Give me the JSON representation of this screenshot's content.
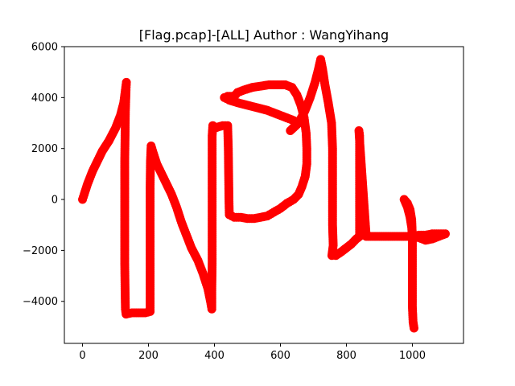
{
  "chart_data": {
    "type": "scatter",
    "title": "[Flag.pcap]-[ALL] Author : WangYihang",
    "xlabel": "",
    "ylabel": "",
    "xlim": [
      -55,
      1155
    ],
    "ylim": [
      -5650,
      6000
    ],
    "xticks": [
      0,
      200,
      400,
      600,
      800,
      1000
    ],
    "yticks": [
      -4000,
      -2000,
      0,
      2000,
      4000,
      6000
    ],
    "xtick_labels": [
      "0",
      "200",
      "400",
      "600",
      "800",
      "1000"
    ],
    "ytick_labels": [
      "−4000",
      "−2000",
      "0",
      "2000",
      "4000",
      "6000"
    ],
    "grid": false,
    "marker_color": "#ff0000",
    "series": [
      {
        "points": [
          [
            0,
            0
          ],
          [
            5,
            200
          ],
          [
            15,
            600
          ],
          [
            30,
            1100
          ],
          [
            45,
            1500
          ],
          [
            60,
            1900
          ],
          [
            80,
            2300
          ],
          [
            100,
            2800
          ],
          [
            115,
            3300
          ],
          [
            125,
            3800
          ],
          [
            130,
            4300
          ],
          [
            133,
            4600
          ],
          [
            132,
            4300
          ],
          [
            130,
            3500
          ],
          [
            129,
            2500
          ],
          [
            128,
            1500
          ],
          [
            128,
            500
          ],
          [
            128,
            -500
          ],
          [
            128,
            -1500
          ],
          [
            128,
            -2500
          ],
          [
            129,
            -3500
          ],
          [
            130,
            -4300
          ],
          [
            132,
            -4500
          ],
          [
            150,
            -4450
          ],
          [
            170,
            -4450
          ],
          [
            190,
            -4450
          ],
          [
            205,
            -4400
          ],
          [
            205,
            -3500
          ],
          [
            205,
            -2500
          ],
          [
            205,
            -1500
          ],
          [
            205,
            -500
          ],
          [
            205,
            500
          ],
          [
            206,
            1500
          ],
          [
            208,
            2100
          ],
          [
            215,
            1800
          ],
          [
            225,
            1400
          ],
          [
            240,
            1000
          ],
          [
            255,
            600
          ],
          [
            270,
            200
          ],
          [
            285,
            -300
          ],
          [
            300,
            -900
          ],
          [
            315,
            -1400
          ],
          [
            330,
            -1900
          ],
          [
            350,
            -2400
          ],
          [
            365,
            -2900
          ],
          [
            380,
            -3500
          ],
          [
            388,
            -4000
          ],
          [
            392,
            -4300
          ],
          [
            392,
            -3500
          ],
          [
            393,
            -2500
          ],
          [
            393,
            -1500
          ],
          [
            393,
            -500
          ],
          [
            393,
            500
          ],
          [
            393,
            1500
          ],
          [
            393,
            2500
          ],
          [
            395,
            2900
          ],
          [
            400,
            2800
          ],
          [
            412,
            2850
          ],
          [
            425,
            2900
          ],
          [
            440,
            2900
          ],
          [
            442,
            2000
          ],
          [
            443,
            1000
          ],
          [
            444,
            0
          ],
          [
            445,
            -600
          ],
          [
            460,
            -700
          ],
          [
            480,
            -700
          ],
          [
            500,
            -750
          ],
          [
            520,
            -750
          ],
          [
            540,
            -700
          ],
          [
            560,
            -650
          ],
          [
            580,
            -500
          ],
          [
            600,
            -350
          ],
          [
            620,
            -150
          ],
          [
            640,
            0
          ],
          [
            655,
            200
          ],
          [
            665,
            500
          ],
          [
            675,
            900
          ],
          [
            680,
            1400
          ],
          [
            680,
            2000
          ],
          [
            678,
            2600
          ],
          [
            672,
            3200
          ],
          [
            662,
            3700
          ],
          [
            650,
            4100
          ],
          [
            635,
            4400
          ],
          [
            615,
            4500
          ],
          [
            590,
            4500
          ],
          [
            565,
            4500
          ],
          [
            540,
            4450
          ],
          [
            515,
            4400
          ],
          [
            490,
            4300
          ],
          [
            470,
            4200
          ],
          [
            460,
            4050
          ],
          [
            440,
            4050
          ],
          [
            430,
            4000
          ],
          [
            445,
            3900
          ],
          [
            470,
            3800
          ],
          [
            500,
            3700
          ],
          [
            530,
            3600
          ],
          [
            560,
            3500
          ],
          [
            590,
            3350
          ],
          [
            620,
            3200
          ],
          [
            640,
            3100
          ],
          [
            650,
            2950
          ],
          [
            630,
            2700
          ],
          [
            655,
            3000
          ],
          [
            675,
            3500
          ],
          [
            690,
            4000
          ],
          [
            705,
            4600
          ],
          [
            715,
            5100
          ],
          [
            722,
            5500
          ],
          [
            728,
            5100
          ],
          [
            735,
            4500
          ],
          [
            745,
            3800
          ],
          [
            755,
            3000
          ],
          [
            758,
            2000
          ],
          [
            758,
            1000
          ],
          [
            758,
            0
          ],
          [
            758,
            -1000
          ],
          [
            760,
            -1800
          ],
          [
            756,
            -2200
          ],
          [
            768,
            -2200
          ],
          [
            785,
            -2050
          ],
          [
            800,
            -1900
          ],
          [
            815,
            -1750
          ],
          [
            830,
            -1550
          ],
          [
            840,
            -1450
          ],
          [
            840,
            -1000
          ],
          [
            840,
            0
          ],
          [
            840,
            1000
          ],
          [
            840,
            1800
          ],
          [
            840,
            2500
          ],
          [
            838,
            2700
          ],
          [
            860,
            -1450
          ],
          [
            880,
            -1450
          ],
          [
            900,
            -1450
          ],
          [
            920,
            -1450
          ],
          [
            940,
            -1450
          ],
          [
            960,
            -1450
          ],
          [
            980,
            -1450
          ],
          [
            1000,
            -1450
          ],
          [
            1020,
            -1400
          ],
          [
            1040,
            -1400
          ],
          [
            1060,
            -1350
          ],
          [
            1080,
            -1350
          ],
          [
            1100,
            -1350
          ],
          [
            1080,
            -1450
          ],
          [
            1060,
            -1550
          ],
          [
            1040,
            -1600
          ],
          [
            1020,
            -1500
          ],
          [
            1000,
            -1450
          ],
          [
            998,
            -800
          ],
          [
            993,
            -400
          ],
          [
            985,
            -150
          ],
          [
            975,
            0
          ],
          [
            985,
            -300
          ],
          [
            993,
            -700
          ],
          [
            998,
            -1100
          ],
          [
            1000,
            -1500
          ],
          [
            1000,
            -2100
          ],
          [
            1000,
            -2800
          ],
          [
            1000,
            -3500
          ],
          [
            1000,
            -4200
          ],
          [
            1002,
            -4800
          ],
          [
            1005,
            -5050
          ]
        ]
      }
    ]
  }
}
